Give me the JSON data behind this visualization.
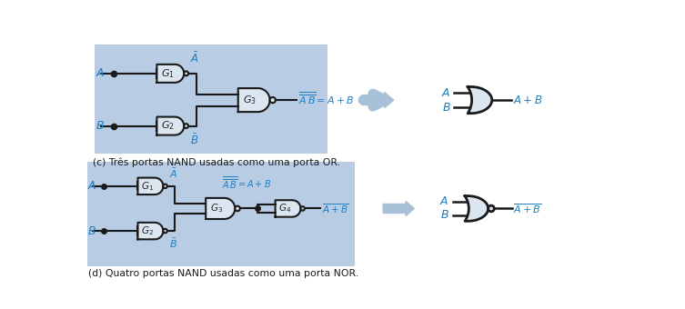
{
  "bg_color": "#ffffff",
  "panel_bg": "#b8cce4",
  "gate_fill": "#dce6f1",
  "gate_edge": "#1a1a1a",
  "wire_color": "#1a1a1a",
  "label_color": "#2080c0",
  "arrow_color": "#a8c0d8",
  "caption_color": "#1a1a1a",
  "caption_c": "(c) Três portas NAND usadas como uma porta OR.",
  "caption_d": "(d) Quatro portas NAND usadas como uma porta NOR."
}
